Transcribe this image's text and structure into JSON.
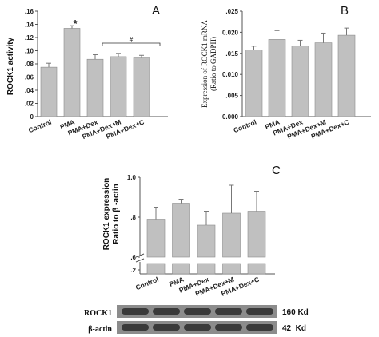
{
  "colors": {
    "bar": "#c0c0c0",
    "bar_stroke": "#8a8a8a",
    "axis": "#555555",
    "band": "#3a3a3a",
    "blot_bg": "#8c8c8c"
  },
  "chart_data": [
    {
      "panel": "A",
      "type": "bar",
      "ylabel": "ROCK1 activity",
      "categories": [
        "Control",
        "PMA",
        "PMA+Dex",
        "PMA+Dex+M",
        "PMA+Dex+C"
      ],
      "values": [
        0.075,
        0.134,
        0.087,
        0.091,
        0.089
      ],
      "errors": [
        0.006,
        0.004,
        0.007,
        0.005,
        0.004
      ],
      "ylim": [
        0,
        0.16
      ],
      "yticks": [
        "0",
        ".02",
        ".04",
        ".06",
        ".08",
        ".10",
        ".12",
        ".14",
        ".16"
      ],
      "annotations": {
        "star": "*",
        "hash": "#"
      }
    },
    {
      "panel": "B",
      "type": "bar",
      "ylabel_line1": "Expression of ROCK1 mRNA",
      "ylabel_line2": "(Ratio to GADPH)",
      "categories": [
        "Control",
        "PMA",
        "PMA+Dex",
        "PMA+Dex+M",
        "PMA+Dex+C"
      ],
      "values": [
        0.0158,
        0.0183,
        0.0168,
        0.0175,
        0.0193
      ],
      "errors": [
        0.0009,
        0.0021,
        0.0013,
        0.0023,
        0.0017
      ],
      "ylim": [
        0,
        0.025
      ],
      "yticks": [
        "0.000",
        ".005",
        "0.010",
        ".015",
        "0.020",
        ".025"
      ]
    },
    {
      "panel": "C",
      "type": "bar",
      "ylabel_line1": "ROCK1 expression",
      "ylabel_line2": "Ratio to β -actin",
      "categories": [
        "Control",
        "PMA",
        "PMA+Dex",
        "PMA+Dex+M",
        "PMA+Dex+C"
      ],
      "values": [
        0.79,
        0.87,
        0.76,
        0.82,
        0.83
      ],
      "errors": [
        0.06,
        0.02,
        0.07,
        0.14,
        0.1
      ],
      "ylim": [
        0.6,
        1.0
      ],
      "yticks": [
        ".2",
        ".6",
        ".8",
        "1.0"
      ],
      "axis_break": true
    }
  ],
  "blot": {
    "rows": [
      {
        "label": "ROCK1",
        "size": "160 Kd"
      },
      {
        "label": "β-actin",
        "size": "42  Kd"
      }
    ]
  }
}
